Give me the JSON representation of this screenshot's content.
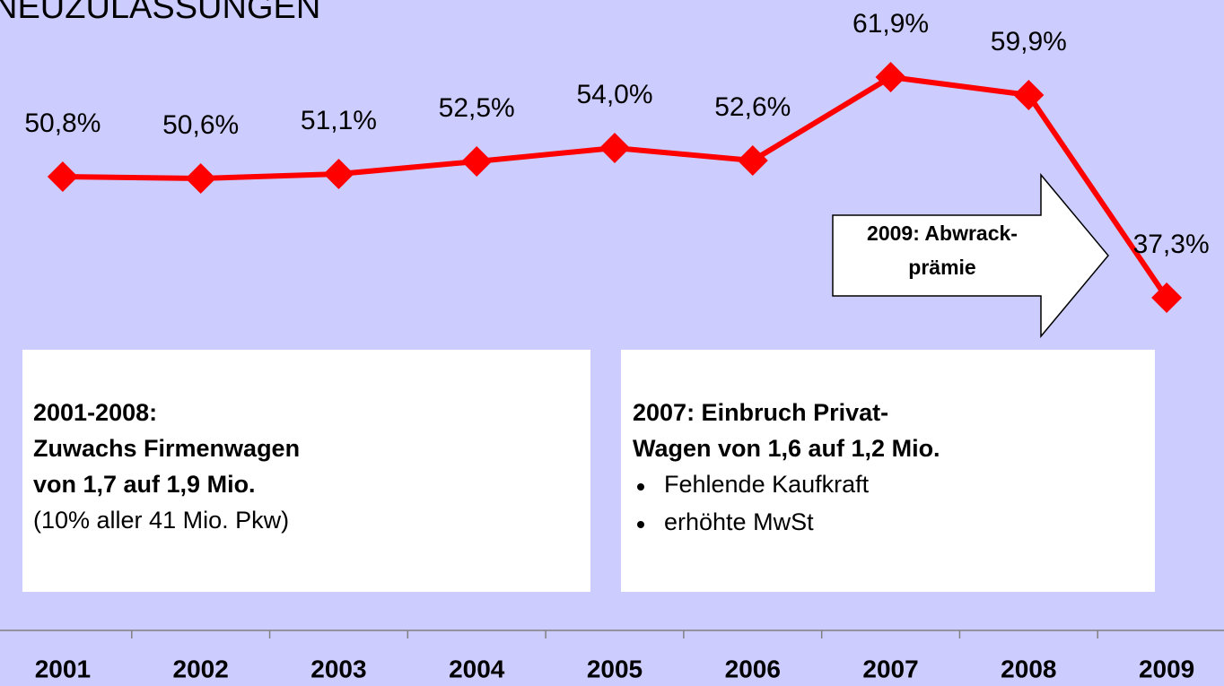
{
  "chart_data": {
    "type": "line",
    "title": "NEUZULASSUNGEN",
    "categories": [
      "2001",
      "2002",
      "2003",
      "2004",
      "2005",
      "2006",
      "2007",
      "2008",
      "2009"
    ],
    "values": [
      50.8,
      50.6,
      51.1,
      52.5,
      54.0,
      52.6,
      61.9,
      59.9,
      37.3
    ],
    "value_labels": [
      "50,8%",
      "50,6%",
      "51,1%",
      "52,5%",
      "54,0%",
      "52,6%",
      "61,9%",
      "59,9%",
      "37,3%"
    ],
    "color": "#ff0000",
    "ylim": [
      0,
      70.5
    ],
    "annotations": [
      {
        "lines": [
          "2009: Abwrack-",
          "prämie"
        ]
      },
      {
        "bold": [
          "2001-2008:",
          "Zuwachs Firmenwagen",
          "von 1,7 auf 1,9 Mio."
        ],
        "normal": [
          "(10% aller 41 Mio. Pkw)"
        ]
      },
      {
        "bold": [
          "2007: Einbruch Privat-",
          "Wagen von 1,6 auf 1,2 Mio."
        ],
        "bullets": [
          "Fehlende Kaufkraft",
          "erhöhte MwSt"
        ]
      }
    ]
  }
}
